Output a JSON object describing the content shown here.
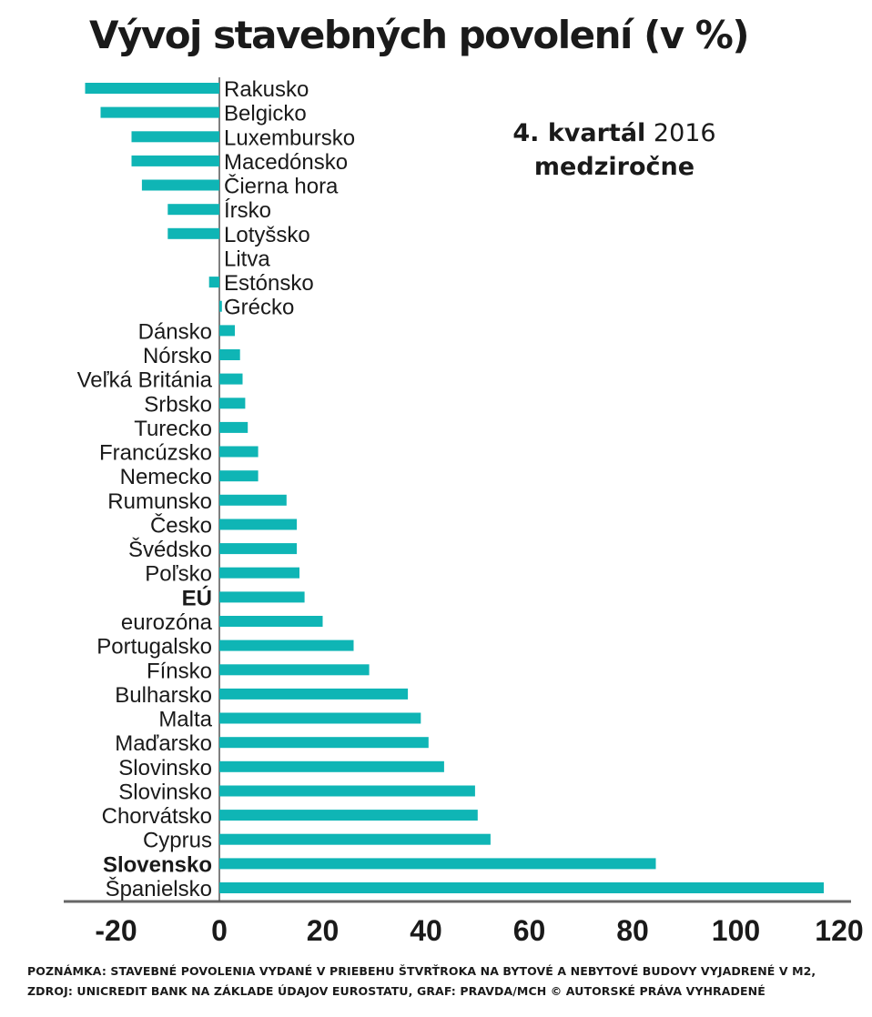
{
  "chart_data": {
    "type": "bar",
    "orientation": "horizontal",
    "title": "Vývoj stavebných povolení (v %)",
    "subtitle_period_bold": "4. kvartál",
    "subtitle_year": "2016",
    "subtitle_line2": "medziročne",
    "categories": [
      "Rakusko",
      "Belgicko",
      "Luxembursko",
      "Macedónsko",
      "Čierna hora",
      "Írsko",
      "Lotyšsko",
      "Litva",
      "Estónsko",
      "Grécko",
      "Dánsko",
      "Nórsko",
      "Veľká Británia",
      "Srbsko",
      "Turecko",
      "Francúzsko",
      "Nemecko",
      "Rumunsko",
      "Česko",
      "Švédsko",
      "Poľsko",
      "EÚ",
      "eurozóna",
      "Portugalsko",
      "Fínsko",
      "Bulharsko",
      "Malta",
      "Maďarsko",
      "Slovinsko",
      "Slovinsko",
      "Chorvátsko",
      "Cyprus",
      "Slovensko",
      "Španielsko"
    ],
    "values": [
      -26,
      -23,
      -17,
      -17,
      -15,
      -10,
      -10,
      0,
      -2,
      0.5,
      3,
      4,
      4.5,
      5,
      5.5,
      7.5,
      7.5,
      13,
      15,
      15,
      15.5,
      16.5,
      20,
      26,
      29,
      36.5,
      39,
      40.5,
      43.5,
      49.5,
      50,
      52.5,
      84.5,
      117
    ],
    "highlighted": [
      "EÚ",
      "Slovensko"
    ],
    "xticks": [
      "-20",
      "0",
      "20",
      "40",
      "60",
      "80",
      "100",
      "120"
    ],
    "xlim": [
      -30,
      120
    ],
    "xlabel": "",
    "ylabel": "",
    "grid": false,
    "bar_color": "#0fb5b5"
  },
  "notes": {
    "line1": "POZNÁMKA: STAVEBNÉ POVOLENIA VYDANÉ V PRIEBEHU ŠTVRŤROKA NA BYTOVÉ A NEBYTOVÉ BUDOVY VYJADRENÉ V M2,",
    "line2": "ZDROJ: UNICREDIT BANK NA ZÁKLADE ÚDAJOV EUROSTATU, GRAF: PRAVDA/MCH © AUTORSKÉ PRÁVA VYHRADENÉ"
  }
}
